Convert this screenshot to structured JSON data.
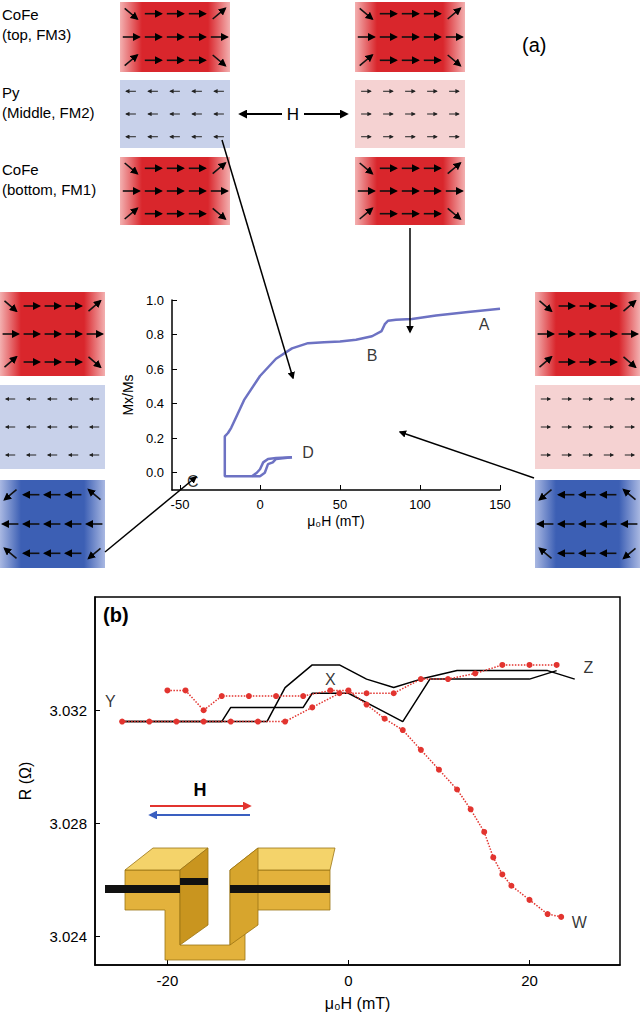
{
  "title": "(a)",
  "layers": [
    [
      "CoFe",
      "(top, FM3)"
    ],
    [
      "Py",
      "(Middle, FM2)"
    ],
    [
      "CoFe",
      "(bottom, FM1)"
    ]
  ],
  "field_label": "H",
  "chart_data": [
    {
      "type": "line",
      "xlabel": "μ₀H (mT)",
      "ylabel": "Mx/Ms",
      "xlim": [
        -55,
        150
      ],
      "ylim": [
        -0.1,
        1.0
      ],
      "xticks": [
        -50,
        0,
        50,
        100,
        150
      ],
      "yticks": [
        {
          "value": 0,
          "label": "0.0"
        },
        {
          "value": 0.2,
          "label": "0.2"
        },
        {
          "value": 0.4,
          "label": "0.4"
        },
        {
          "value": 0.6,
          "label": "0.6"
        },
        {
          "value": 0.8,
          "label": "0.8"
        },
        {
          "value": 1.0,
          "label": "1.0"
        }
      ],
      "grid": false,
      "series": [
        {
          "color": "#6d72c3",
          "line_style": "solid",
          "x": [
            150,
            130,
            110,
            95,
            85,
            80,
            78,
            76,
            70,
            60,
            50,
            40,
            30,
            20,
            10,
            0,
            -10,
            -15,
            -18,
            -20,
            -22,
            -22,
            -15,
            -5,
            0,
            3,
            5,
            8,
            10,
            20
          ],
          "values": [
            0.95,
            0.93,
            0.91,
            0.89,
            0.885,
            0.88,
            0.86,
            0.82,
            0.79,
            0.77,
            0.76,
            0.755,
            0.75,
            0.72,
            0.66,
            0.56,
            0.42,
            0.32,
            0.26,
            0.23,
            0.21,
            -0.02,
            -0.02,
            -0.02,
            -0.02,
            0.0,
            0.05,
            0.06,
            0.08,
            0.09
          ]
        },
        {
          "color": "#6d72c3",
          "line_style": "solid",
          "x": [
            20,
            10,
            5,
            2,
            0,
            -2,
            -5
          ],
          "values": [
            0.09,
            0.085,
            0.08,
            0.06,
            0.02,
            0.0,
            -0.02
          ]
        }
      ],
      "annotations": [
        {
          "text": "A",
          "x": 140,
          "y": 0.86
        },
        {
          "text": "B",
          "x": 70,
          "y": 0.68
        },
        {
          "text": "C",
          "x": -42,
          "y": -0.05
        },
        {
          "text": "D",
          "x": 30,
          "y": 0.12
        }
      ]
    },
    {
      "type": "line",
      "title": "(b)",
      "xlabel": "μ₀H (mT)",
      "ylabel": "R (Ω)",
      "xlim": [
        -28,
        30
      ],
      "ylim": [
        3.023,
        3.036
      ],
      "xticks": [
        -20,
        0,
        20
      ],
      "yticks": [
        3.024,
        3.028,
        3.032
      ],
      "grid": false,
      "inset_label": "H",
      "series": [
        {
          "color": "#000000",
          "line_style": "solid",
          "marker": "none",
          "x": [
            -25,
            -14,
            -13,
            -5,
            -4,
            0,
            3,
            6,
            9,
            20,
            23
          ],
          "values": [
            3.0316,
            3.0316,
            3.0321,
            3.0321,
            3.0326,
            3.0326,
            3.0321,
            3.0316,
            3.0331,
            3.0331,
            3.0334
          ]
        },
        {
          "color": "#000000",
          "line_style": "solid",
          "marker": "none",
          "x": [
            -25,
            -9,
            -7,
            -4,
            -1,
            2,
            5,
            8,
            12,
            22,
            25
          ],
          "values": [
            3.0316,
            3.0316,
            3.0328,
            3.0336,
            3.0336,
            3.0331,
            3.0328,
            3.0331,
            3.0334,
            3.0334,
            3.0331
          ]
        },
        {
          "color": "#e2342f",
          "line_style": "dotted",
          "marker": "circle",
          "x": [
            -25,
            -22,
            -19,
            -16,
            -13,
            -10,
            -7,
            -4,
            -1,
            2,
            5,
            8,
            11,
            14,
            17,
            20,
            23
          ],
          "values": [
            3.0316,
            3.0316,
            3.0316,
            3.0316,
            3.0316,
            3.0316,
            3.0316,
            3.0321,
            3.0326,
            3.0326,
            3.0326,
            3.0331,
            3.0331,
            3.0333,
            3.0336,
            3.0336,
            3.0336
          ]
        },
        {
          "color": "#e2342f",
          "line_style": "dotted",
          "marker": "circle",
          "x": [
            -20,
            -18,
            -16,
            -14,
            -11,
            -8,
            -5,
            -2,
            0,
            2,
            4,
            6,
            8,
            10,
            12,
            13.5,
            15,
            16,
            17,
            18,
            20,
            22,
            23.5
          ],
          "values": [
            3.0327,
            3.0327,
            3.032,
            3.0325,
            3.0325,
            3.0325,
            3.0325,
            3.0327,
            3.0327,
            3.0322,
            3.0317,
            3.0313,
            3.0306,
            3.0299,
            3.0292,
            3.0285,
            3.0277,
            3.0268,
            3.0262,
            3.0258,
            3.0253,
            3.0248,
            3.0247
          ]
        }
      ],
      "annotations": [
        {
          "text": "Y",
          "x": -26.3,
          "y": 3.0323
        },
        {
          "text": "X",
          "x": -2,
          "y": 3.0331
        },
        {
          "text": "Z",
          "x": 26.5,
          "y": 3.0335
        },
        {
          "text": "W",
          "x": 25.5,
          "y": 3.0245
        }
      ]
    }
  ]
}
